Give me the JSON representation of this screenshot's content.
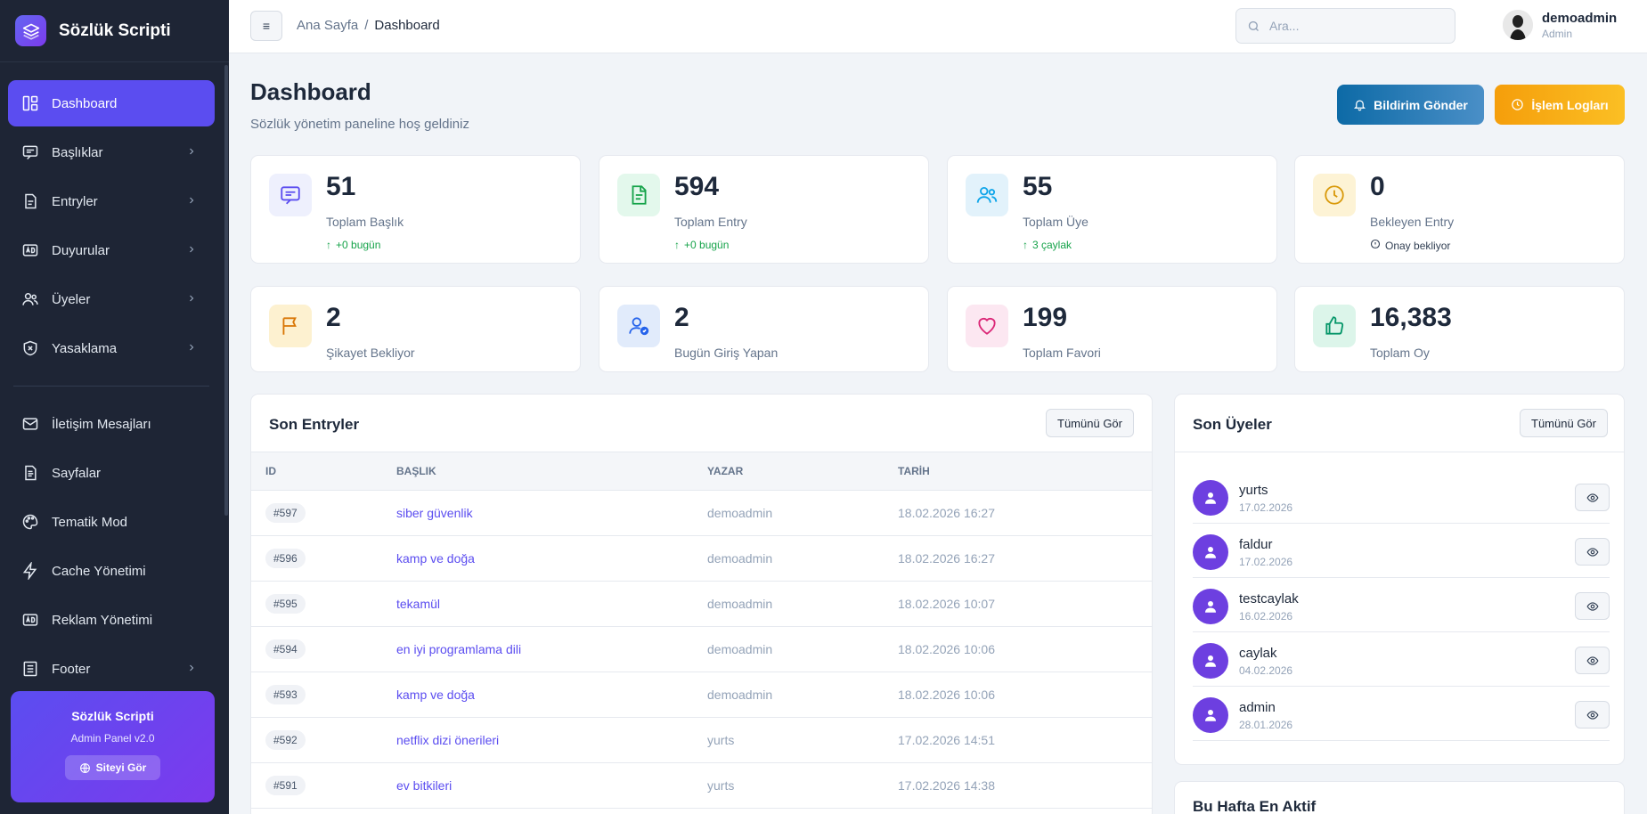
{
  "brand": {
    "name": "Sözlük Scripti"
  },
  "sidebar": {
    "items": [
      {
        "label": "Dashboard",
        "icon": "dashboard-icon",
        "active": true
      },
      {
        "label": "Başlıklar",
        "icon": "message-icon",
        "chevron": true
      },
      {
        "label": "Entryler",
        "icon": "document-icon",
        "chevron": true
      },
      {
        "label": "Duyurular",
        "icon": "ad-icon",
        "chevron": true
      },
      {
        "label": "Üyeler",
        "icon": "users-icon",
        "chevron": true
      },
      {
        "label": "Yasaklama",
        "icon": "shield-icon",
        "chevron": true
      },
      {
        "label": "İletişim Mesajları",
        "icon": "mail-icon"
      },
      {
        "label": "Sayfalar",
        "icon": "file-icon"
      },
      {
        "label": "Tematik Mod",
        "icon": "palette-icon"
      },
      {
        "label": "Cache Yönetimi",
        "icon": "bolt-icon"
      },
      {
        "label": "Reklam Yönetimi",
        "icon": "ad-icon"
      },
      {
        "label": "Footer",
        "icon": "layout-icon",
        "chevron": true
      }
    ],
    "promo": {
      "title": "Sözlük Scripti",
      "subtitle": "Admin Panel v2.0",
      "button": "Siteyi Gör"
    }
  },
  "topbar": {
    "menu_icon": "≡",
    "breadcrumb": {
      "home": "Ana Sayfa",
      "separator": "/",
      "current": "Dashboard"
    },
    "search_placeholder": "Ara...",
    "user": {
      "name": "demoadmin",
      "role": "Admin"
    }
  },
  "header": {
    "title": "Dashboard",
    "subtitle": "Sözlük yönetim paneline hoş geldiniz",
    "notify_button": "Bildirim Gönder",
    "logs_button": "İşlem Logları"
  },
  "stats": [
    {
      "value": "51",
      "label": "Toplam Başlık",
      "delta": "+0 bugün",
      "icon": "message-icon",
      "color": "#5b4df0",
      "bg": "#eef0fd"
    },
    {
      "value": "594",
      "label": "Toplam Entry",
      "delta": "+0 bugün",
      "icon": "document-icon",
      "color": "#16a34a",
      "bg": "#e3f8ec"
    },
    {
      "value": "55",
      "label": "Toplam Üye",
      "delta": "3 çaylak",
      "icon": "users-icon",
      "color": "#0ea5e9",
      "bg": "#e2f2fb"
    },
    {
      "value": "0",
      "label": "Bekleyen Entry",
      "delta": "Onay bekliyor",
      "icon": "clock-icon",
      "color": "#d99a0b",
      "bg": "#fdf3d5"
    },
    {
      "value": "2",
      "label": "Şikayet Bekliyor",
      "icon": "flag-icon",
      "color": "#d97706",
      "bg": "#fdf1d0"
    },
    {
      "value": "2",
      "label": "Bugün Giriş Yapan",
      "icon": "user-check-icon",
      "color": "#2563eb",
      "bg": "#e1ebfb"
    },
    {
      "value": "199",
      "label": "Toplam Favori",
      "icon": "heart-icon",
      "color": "#db2777",
      "bg": "#fce7f1"
    },
    {
      "value": "16,383",
      "label": "Toplam Oy",
      "icon": "thumbs-up-icon",
      "color": "#059669",
      "bg": "#dcf5ea"
    }
  ],
  "recent_entries": {
    "title": "Son Entryler",
    "view_all": "Tümünü Gör",
    "columns": [
      "ID",
      "BAŞLIK",
      "YAZAR",
      "TARİH"
    ],
    "rows": [
      {
        "id": "#597",
        "title": "siber güvenlik",
        "author": "demoadmin",
        "date": "18.02.2026 16:27"
      },
      {
        "id": "#596",
        "title": "kamp ve doğa",
        "author": "demoadmin",
        "date": "18.02.2026 16:27"
      },
      {
        "id": "#595",
        "title": "tekamül",
        "author": "demoadmin",
        "date": "18.02.2026 10:07"
      },
      {
        "id": "#594",
        "title": "en iyi programlama dili",
        "author": "demoadmin",
        "date": "18.02.2026 10:06"
      },
      {
        "id": "#593",
        "title": "kamp ve doğa",
        "author": "demoadmin",
        "date": "18.02.2026 10:06"
      },
      {
        "id": "#592",
        "title": "netflix dizi önerileri",
        "author": "yurts",
        "date": "17.02.2026 14:51"
      },
      {
        "id": "#591",
        "title": "ev bitkileri",
        "author": "yurts",
        "date": "17.02.2026 14:38"
      }
    ]
  },
  "recent_members": {
    "title": "Son Üyeler",
    "view_all": "Tümünü Gör",
    "members": [
      {
        "name": "yurts",
        "date": "17.02.2026"
      },
      {
        "name": "faldur",
        "date": "17.02.2026"
      },
      {
        "name": "testcaylak",
        "date": "16.02.2026"
      },
      {
        "name": "caylak",
        "date": "04.02.2026"
      },
      {
        "name": "admin",
        "date": "28.01.2026"
      }
    ]
  },
  "weekly_active": {
    "title": "Bu Hafta En Aktif"
  }
}
